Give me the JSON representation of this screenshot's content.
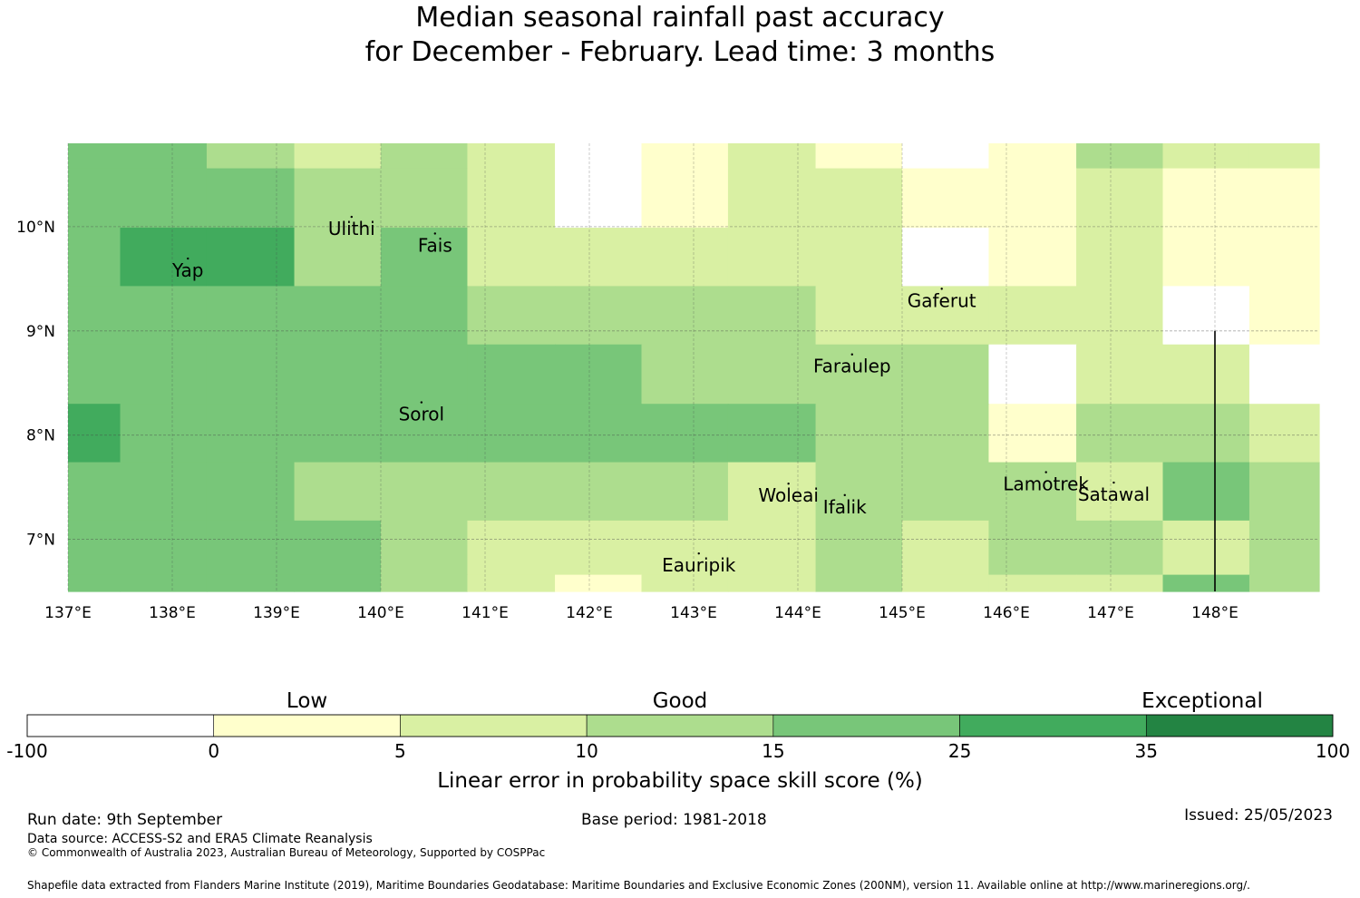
{
  "title": {
    "line1": "Median seasonal rainfall past accuracy",
    "line2": "for December - February. Lead time: 3 months"
  },
  "map": {
    "lon_range": [
      137.0,
      149.0
    ],
    "lat_range": [
      6.5,
      10.8
    ],
    "lon_ticks": [
      {
        "value": 137,
        "label": "137°E"
      },
      {
        "value": 138,
        "label": "138°E"
      },
      {
        "value": 139,
        "label": "139°E"
      },
      {
        "value": 140,
        "label": "140°E"
      },
      {
        "value": 141,
        "label": "141°E"
      },
      {
        "value": 142,
        "label": "142°E"
      },
      {
        "value": 143,
        "label": "143°E"
      },
      {
        "value": 144,
        "label": "144°E"
      },
      {
        "value": 145,
        "label": "145°E"
      },
      {
        "value": 146,
        "label": "146°E"
      },
      {
        "value": 147,
        "label": "147°E"
      },
      {
        "value": 148,
        "label": "148°E"
      }
    ],
    "lat_ticks": [
      {
        "value": 10,
        "label": "10°N"
      },
      {
        "value": 9,
        "label": "9°N"
      },
      {
        "value": 8,
        "label": "8°N"
      },
      {
        "value": 7,
        "label": "7°N"
      }
    ],
    "grid": true,
    "grid_lon_edges": [
      137.0,
      137.5,
      138.33,
      139.17,
      140.0,
      140.83,
      141.67,
      142.5,
      143.33,
      144.17,
      145.0,
      145.83,
      146.67,
      147.5,
      148.33,
      149.0
    ],
    "grid_lat_edges": [
      10.8,
      10.56,
      9.99,
      9.43,
      8.87,
      8.3,
      7.74,
      7.18,
      6.66,
      6.5
    ],
    "cell_classes": [
      [
        4,
        4,
        3,
        2,
        3,
        2,
        0,
        1,
        2,
        1,
        0,
        1,
        3,
        2,
        2
      ],
      [
        4,
        4,
        4,
        3,
        3,
        2,
        0,
        1,
        2,
        2,
        1,
        1,
        2,
        1,
        1
      ],
      [
        4,
        5,
        5,
        3,
        4,
        2,
        2,
        2,
        2,
        2,
        0,
        1,
        2,
        1,
        1
      ],
      [
        4,
        4,
        4,
        4,
        4,
        3,
        3,
        3,
        3,
        2,
        2,
        2,
        2,
        0,
        1
      ],
      [
        4,
        4,
        4,
        4,
        4,
        4,
        4,
        3,
        3,
        3,
        3,
        0,
        2,
        2,
        0
      ],
      [
        5,
        4,
        4,
        4,
        4,
        4,
        4,
        4,
        4,
        3,
        3,
        1,
        3,
        3,
        2
      ],
      [
        4,
        4,
        4,
        3,
        3,
        3,
        3,
        3,
        2,
        3,
        3,
        3,
        2,
        4,
        3
      ],
      [
        4,
        4,
        4,
        4,
        3,
        2,
        2,
        2,
        2,
        3,
        2,
        3,
        3,
        2,
        3
      ],
      [
        4,
        4,
        4,
        4,
        3,
        2,
        1,
        2,
        2,
        3,
        2,
        2,
        2,
        4,
        3
      ]
    ],
    "islands": [
      {
        "name": "Yap",
        "lon": 138.15,
        "lat": 9.52
      },
      {
        "name": "Ulithi",
        "lon": 139.72,
        "lat": 9.92
      },
      {
        "name": "Fais",
        "lon": 140.52,
        "lat": 9.76
      },
      {
        "name": "Gaferut",
        "lon": 145.38,
        "lat": 9.23
      },
      {
        "name": "Faraulep",
        "lon": 144.52,
        "lat": 8.6
      },
      {
        "name": "Sorol",
        "lon": 140.39,
        "lat": 8.14
      },
      {
        "name": "Woleai",
        "lon": 143.91,
        "lat": 7.36
      },
      {
        "name": "Ifalik",
        "lon": 144.45,
        "lat": 7.25
      },
      {
        "name": "Lamotrek",
        "lon": 146.38,
        "lat": 7.47
      },
      {
        "name": "Satawal",
        "lon": 147.03,
        "lat": 7.37
      },
      {
        "name": "Eauripik",
        "lon": 143.05,
        "lat": 6.69
      }
    ],
    "boundary_line": {
      "lon": 148.0,
      "lat_from": 9.0,
      "lat_to": 6.5
    }
  },
  "colorbar": {
    "colors": [
      "#ffffff",
      "#ffffcc",
      "#d9f0a3",
      "#addd8e",
      "#78c679",
      "#41ab5d",
      "#238443"
    ],
    "ticks": [
      "-100",
      "0",
      "5",
      "10",
      "15",
      "25",
      "35",
      "100"
    ],
    "label": "Linear error in probability space skill score (%)",
    "categories": [
      {
        "label": "Low",
        "under_segment": 1.5
      },
      {
        "label": "Good",
        "under_segment": 3.5
      },
      {
        "label": "Exceptional",
        "under_segment": 6.3
      }
    ]
  },
  "footer": {
    "run_date": "Run date: 9th September",
    "base_period": "Base period: 1981-2018",
    "issued": "Issued: 25/05/2023",
    "data_source": "Data source: ACCESS-S2 and ERA5 Climate Reanalysis",
    "copyright": "© Commonwealth of Australia 2023, Australian Bureau of Meteorology, Supported by COSPPac",
    "shapefile": "Shapefile data extracted from Flanders Marine Institute (2019), Maritime Boundaries Geodatabase: Maritime Boundaries and Exclusive Economic Zones (200NM), version 11. Available online at http://www.marineregions.org/."
  }
}
